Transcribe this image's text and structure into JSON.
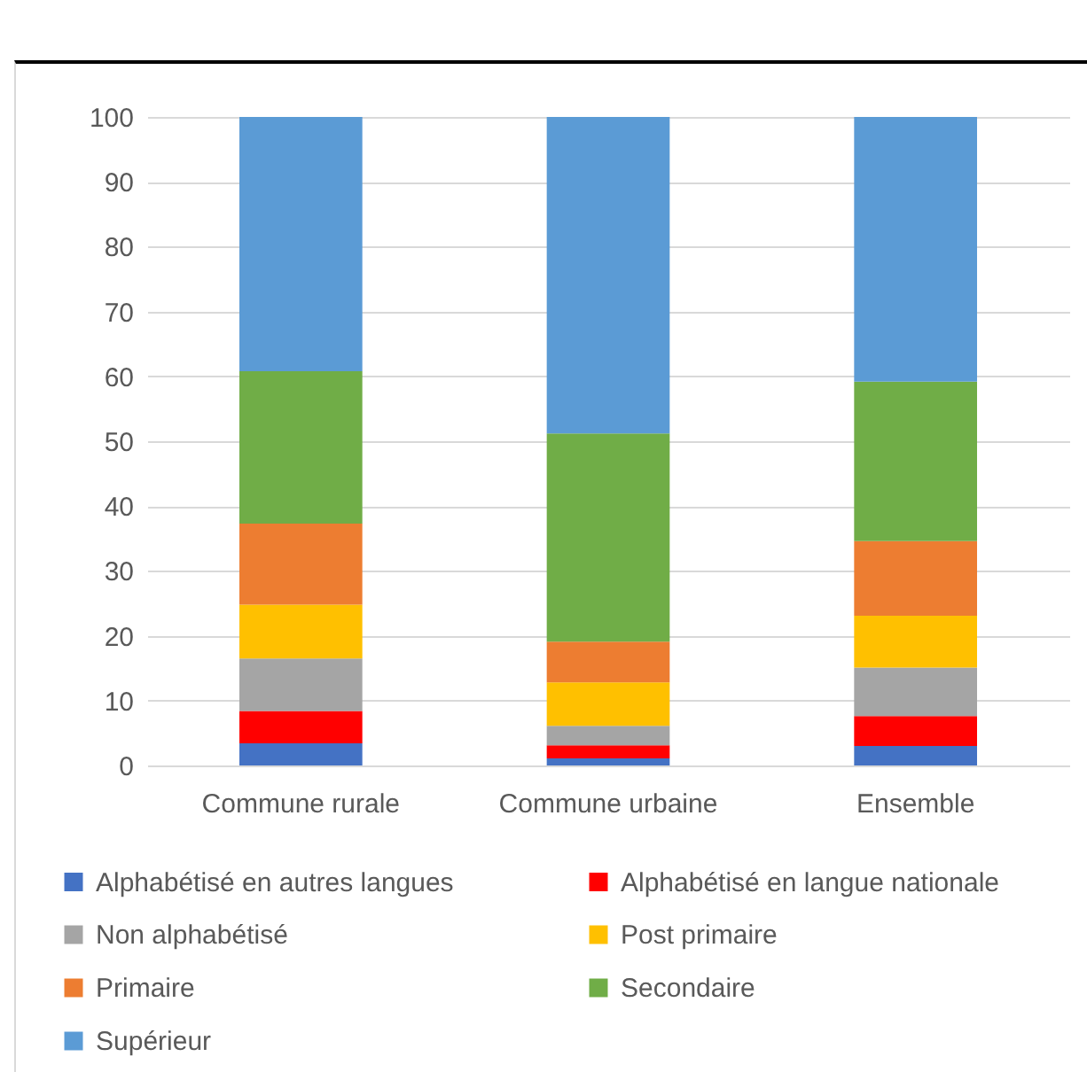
{
  "chart_data": {
    "type": "bar",
    "stacked": true,
    "categories": [
      "Commune rurale",
      "Commune urbaine",
      "Ensemble"
    ],
    "series": [
      {
        "name": "Alphabétisé en autres langues",
        "color": "#4472c4",
        "values": [
          3.4,
          1.1,
          3.0
        ]
      },
      {
        "name": "Alphabétisé en langue nationale",
        "color": "#ff0000",
        "values": [
          5.0,
          2.0,
          4.6
        ]
      },
      {
        "name": "Non alphabétisé",
        "color": "#a5a5a5",
        "values": [
          8.1,
          3.0,
          7.5
        ]
      },
      {
        "name": "Post primaire",
        "color": "#ffc000",
        "values": [
          8.3,
          6.7,
          8.0
        ]
      },
      {
        "name": "Primaire",
        "color": "#ed7d31",
        "values": [
          12.5,
          6.3,
          11.5
        ]
      },
      {
        "name": "Secondaire",
        "color": "#70ad47",
        "values": [
          23.5,
          32.1,
          24.6
        ]
      },
      {
        "name": "Supérieur",
        "color": "#5b9bd5",
        "values": [
          39.2,
          48.8,
          40.8
        ]
      }
    ],
    "ylim": [
      0,
      100
    ],
    "yticks": [
      0,
      10,
      20,
      30,
      40,
      50,
      60,
      70,
      80,
      90,
      100
    ],
    "grid": "y",
    "legend": "bottom"
  }
}
